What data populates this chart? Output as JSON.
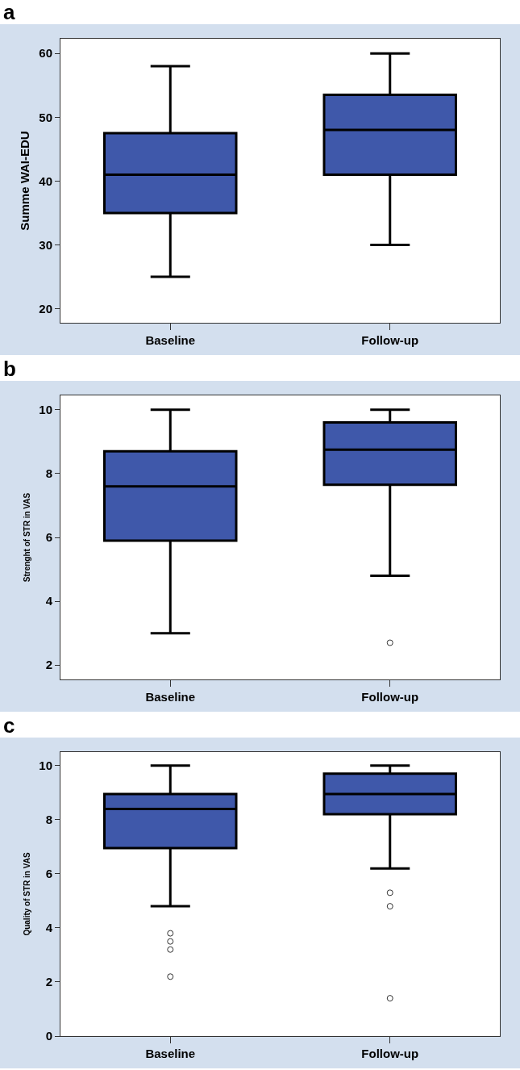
{
  "chart_data": [
    {
      "type": "box",
      "title": "a",
      "ylabel": "Summe WAI-EDU",
      "categories": [
        "Baseline",
        "Follow-up"
      ],
      "ylim": [
        17.8,
        62.3
      ],
      "yticks": [
        20,
        30,
        40,
        50,
        60
      ],
      "series": [
        {
          "color": "#3f58aa",
          "boxes": [
            {
              "low": 25,
              "q1": 35,
              "median": 41,
              "q3": 47.5,
              "high": 58
            },
            {
              "low": 30,
              "q1": 41,
              "median": 48,
              "q3": 53.5,
              "high": 60
            }
          ]
        }
      ]
    },
    {
      "type": "box",
      "title": "b",
      "ylabel": "Strenght of STR in VAS",
      "categories": [
        "Baseline",
        "Follow-up"
      ],
      "ylim": [
        1.55,
        10.45
      ],
      "yticks": [
        2,
        4,
        6,
        8,
        10
      ],
      "series": [
        {
          "color": "#3f58aa",
          "boxes": [
            {
              "low": 3.0,
              "q1": 5.9,
              "median": 7.6,
              "q3": 8.7,
              "high": 10
            },
            {
              "low": 4.8,
              "q1": 7.65,
              "median": 8.75,
              "q3": 9.6,
              "high": 10,
              "outliers": [
                2.7
              ]
            }
          ]
        }
      ]
    },
    {
      "type": "box",
      "title": "c",
      "ylabel": "Quality of STR in VAS",
      "categories": [
        "Baseline",
        "Follow-up"
      ],
      "ylim": [
        0,
        10.5
      ],
      "yticks": [
        0,
        2,
        4,
        6,
        8,
        10
      ],
      "series": [
        {
          "color": "#3f58aa",
          "boxes": [
            {
              "low": 4.8,
              "q1": 6.95,
              "median": 8.4,
              "q3": 8.95,
              "high": 10,
              "outliers": [
                3.8,
                3.5,
                3.2,
                2.2
              ]
            },
            {
              "low": 6.2,
              "q1": 8.2,
              "median": 8.95,
              "q3": 9.7,
              "high": 10,
              "outliers": [
                5.3,
                4.8,
                1.4
              ]
            }
          ]
        }
      ]
    }
  ]
}
